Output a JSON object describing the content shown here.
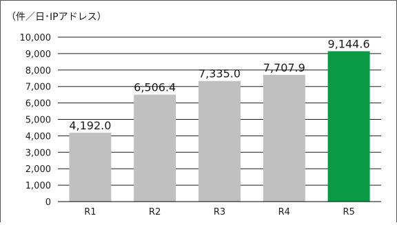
{
  "chart_data": {
    "type": "bar",
    "title": "",
    "unit_label": "（件／日･IPアドレス）",
    "xlabel": "",
    "ylabel": "",
    "categories": [
      "R1",
      "R2",
      "R3",
      "R4",
      "R5"
    ],
    "values": [
      4192.0,
      6506.4,
      7335.0,
      7707.9,
      9144.6
    ],
    "value_labels": [
      "4,192.0",
      "6,506.4",
      "7,335.0",
      "7,707.9",
      "9,144.6"
    ],
    "ylim": [
      0,
      10000
    ],
    "yticks": [
      0,
      1000,
      2000,
      3000,
      4000,
      5000,
      6000,
      7000,
      8000,
      9000,
      10000
    ],
    "ytick_labels": [
      "0",
      "1,000",
      "2,000",
      "3,000",
      "4,000",
      "5,000",
      "6,000",
      "7,000",
      "8,000",
      "9,000",
      "10,000"
    ],
    "grid": true,
    "legend": "none",
    "colors": {
      "bar_default": "#c0c0c0",
      "bar_highlight": "#0a9a46",
      "gridline": "#1a1a1a",
      "axis": "#000000",
      "text": "#1a1a1a",
      "frame": "#555555"
    },
    "highlight_index": 4
  }
}
